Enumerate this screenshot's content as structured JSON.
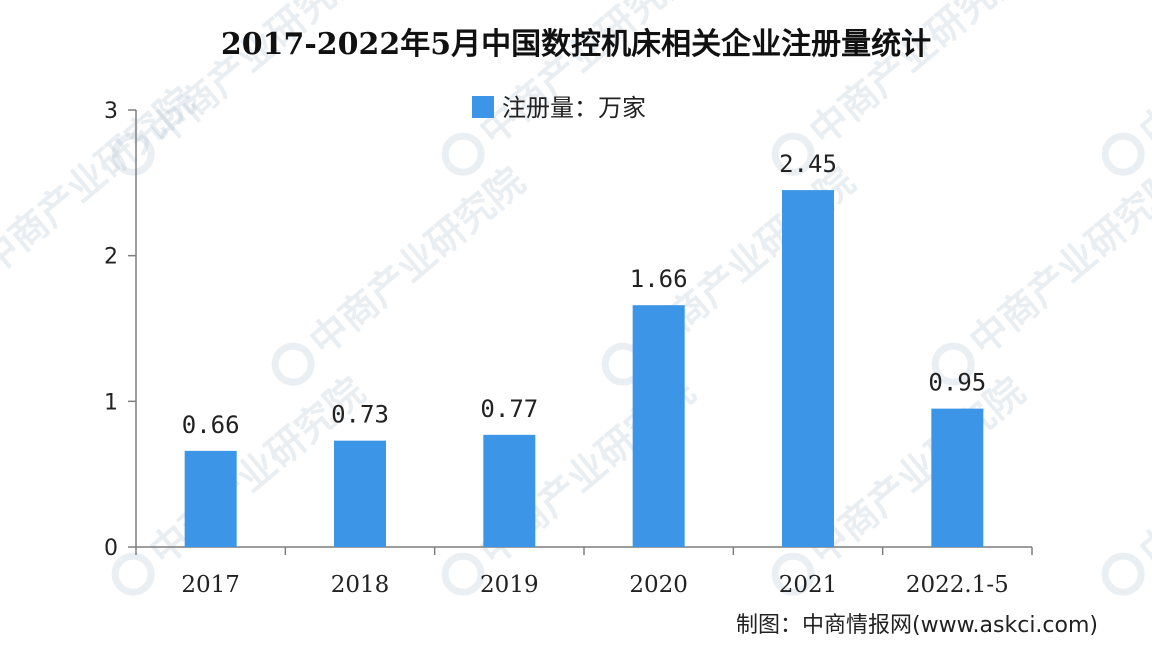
{
  "chart_data": {
    "type": "bar",
    "title": "2017-2022年5月中国数控机床相关企业注册量统计",
    "legend": "注册量：万家",
    "legend_position": "top-center",
    "categories": [
      "2017",
      "2018",
      "2019",
      "2020",
      "2021",
      "2022.1-5"
    ],
    "series": [
      {
        "name": "注册量：万家",
        "values": [
          0.66,
          0.73,
          0.77,
          1.66,
          2.45,
          0.95
        ],
        "labels": [
          "0.66",
          "0.73",
          "0.77",
          "1.66",
          "2.45",
          "0.95"
        ]
      }
    ],
    "y_ticks": [
      "0",
      "1",
      "2",
      "3"
    ],
    "ylim": [
      0,
      3
    ],
    "xlabel": "",
    "ylabel": "",
    "grid": false,
    "bar_color": "#3d95e8"
  },
  "source": "制图：中商情报网(www.askci.com)",
  "watermark": "中商产业研究院"
}
